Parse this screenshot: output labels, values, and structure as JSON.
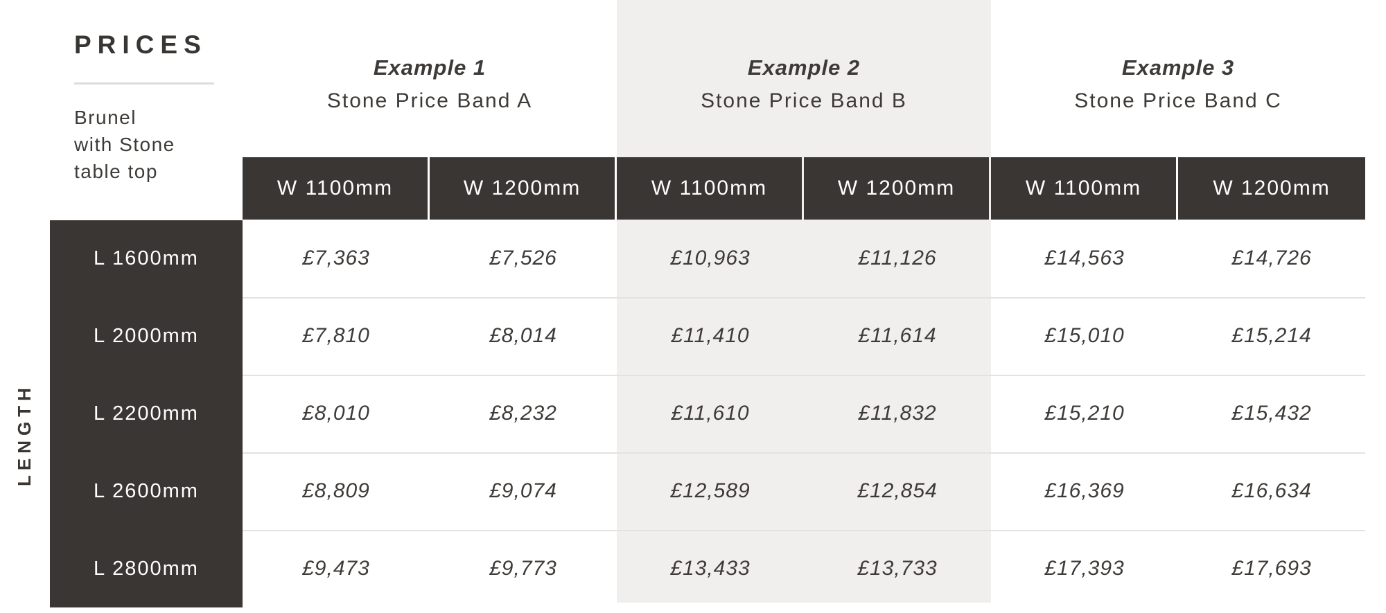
{
  "page": {
    "title": "PRICES",
    "product_lines": [
      "Brunel",
      "with Stone",
      "table top"
    ],
    "length_axis_label": "LENGTH"
  },
  "groups": [
    {
      "example": "Example 1",
      "band": "Stone Price Band A",
      "highlight": false
    },
    {
      "example": "Example 2",
      "band": "Stone Price Band B",
      "highlight": true
    },
    {
      "example": "Example 3",
      "band": "Stone Price Band C",
      "highlight": false
    }
  ],
  "width_header_cells": [
    "W 1100mm",
    "W 1200mm",
    "W 1100mm",
    "W 1200mm",
    "W 1100mm",
    "W 1200mm"
  ],
  "rows": [
    {
      "length": "L 1600mm",
      "prices": [
        "£7,363",
        "£7,526",
        "£10,963",
        "£11,126",
        "£14,563",
        "£14,726"
      ]
    },
    {
      "length": "L 2000mm",
      "prices": [
        "£7,810",
        "£8,014",
        "£11,410",
        "£11,614",
        "£15,010",
        "£15,214"
      ]
    },
    {
      "length": "L 2200mm",
      "prices": [
        "£8,010",
        "£8,232",
        "£11,610",
        "£11,832",
        "£15,210",
        "£15,432"
      ]
    },
    {
      "length": "L 2600mm",
      "prices": [
        "£8,809",
        "£9,074",
        "£12,589",
        "£12,854",
        "£16,369",
        "£16,634"
      ]
    },
    {
      "length": "L 2800mm",
      "prices": [
        "£9,473",
        "£9,773",
        "£13,433",
        "£13,733",
        "£17,393",
        "£17,693"
      ]
    }
  ],
  "colors": {
    "dark": "#393633",
    "dark_text": "#383532",
    "text": "#3d3a37",
    "highlight_panel": "#f0efee",
    "separator": "#e4e2e0",
    "title_underline": "#dcdcdc",
    "header_text": "#ffffff"
  },
  "chart_data": {
    "type": "table",
    "title": "PRICES",
    "subtitle": "Brunel with Stone table top",
    "row_axis_label": "LENGTH",
    "column_groups": [
      {
        "label": "Example 1",
        "sublabel": "Stone Price Band A",
        "columns": [
          "W 1100mm",
          "W 1200mm"
        ],
        "highlighted": false
      },
      {
        "label": "Example 2",
        "sublabel": "Stone Price Band B",
        "columns": [
          "W 1100mm",
          "W 1200mm"
        ],
        "highlighted": true
      },
      {
        "label": "Example 3",
        "sublabel": "Stone Price Band C",
        "columns": [
          "W 1100mm",
          "W 1200mm"
        ],
        "highlighted": false
      }
    ],
    "row_labels": [
      "L 1600mm",
      "L 2000mm",
      "L 2200mm",
      "L 2600mm",
      "L 2800mm"
    ],
    "currency": "GBP",
    "values_gbp": [
      [
        7363,
        7526,
        10963,
        11126,
        14563,
        14726
      ],
      [
        7810,
        8014,
        11410,
        11614,
        15010,
        15214
      ],
      [
        8010,
        8232,
        11610,
        11832,
        15210,
        15432
      ],
      [
        8809,
        9074,
        12589,
        12854,
        16369,
        16634
      ],
      [
        9473,
        9773,
        13433,
        13733,
        17393,
        17693
      ]
    ]
  }
}
